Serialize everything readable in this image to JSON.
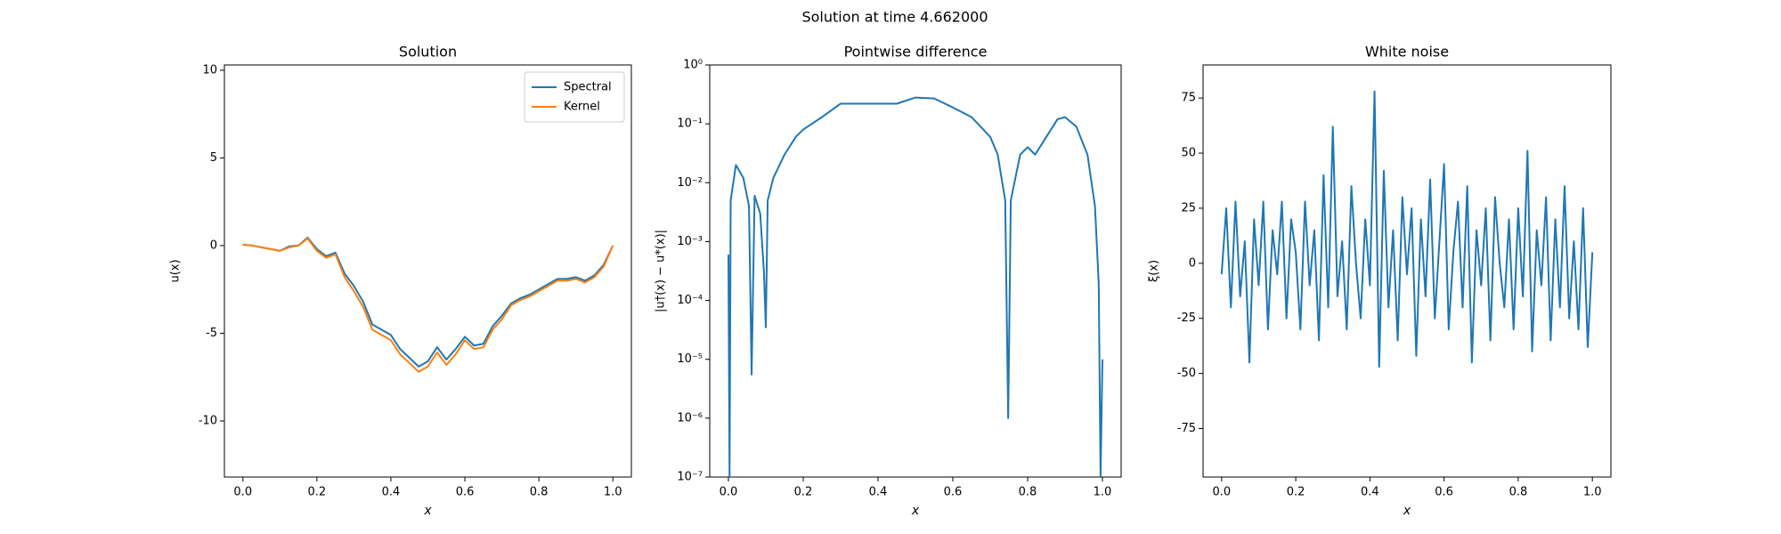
{
  "title": "Solution at time 4.662000",
  "chart_data": [
    {
      "type": "line",
      "title": "Solution",
      "xlabel": "x",
      "ylabel": "u(x)",
      "x": [
        0,
        0.025,
        0.05,
        0.075,
        0.1,
        0.125,
        0.15,
        0.175,
        0.2,
        0.225,
        0.25,
        0.275,
        0.3,
        0.325,
        0.35,
        0.375,
        0.4,
        0.425,
        0.45,
        0.475,
        0.5,
        0.525,
        0.55,
        0.575,
        0.6,
        0.625,
        0.65,
        0.675,
        0.7,
        0.725,
        0.75,
        0.775,
        0.8,
        0.825,
        0.85,
        0.875,
        0.9,
        0.925,
        0.95,
        0.975,
        1.0
      ],
      "series": [
        {
          "name": "Spectral",
          "color": "#1f77b4",
          "values": [
            0.05,
            0.0,
            -0.1,
            -0.2,
            -0.3,
            -0.05,
            0.0,
            0.45,
            -0.2,
            -0.6,
            -0.4,
            -1.6,
            -2.3,
            -3.2,
            -4.5,
            -4.8,
            -5.1,
            -5.9,
            -6.4,
            -6.9,
            -6.6,
            -5.8,
            -6.5,
            -5.9,
            -5.2,
            -5.7,
            -5.6,
            -4.6,
            -4.0,
            -3.3,
            -3.0,
            -2.8,
            -2.5,
            -2.2,
            -1.9,
            -1.9,
            -1.8,
            -2.0,
            -1.7,
            -1.1,
            0.0
          ]
        },
        {
          "name": "Kernel",
          "color": "#ff7f0e",
          "values": [
            0.05,
            0.0,
            -0.1,
            -0.2,
            -0.3,
            -0.1,
            0.0,
            0.4,
            -0.3,
            -0.7,
            -0.5,
            -1.8,
            -2.6,
            -3.5,
            -4.8,
            -5.1,
            -5.4,
            -6.2,
            -6.7,
            -7.2,
            -6.9,
            -6.1,
            -6.8,
            -6.2,
            -5.4,
            -5.9,
            -5.8,
            -4.8,
            -4.2,
            -3.4,
            -3.1,
            -2.9,
            -2.6,
            -2.3,
            -2.0,
            -2.0,
            -1.9,
            -2.1,
            -1.8,
            -1.2,
            0.0
          ]
        }
      ],
      "xlim": [
        -0.05,
        1.05
      ],
      "xticks": [
        {
          "value": 0,
          "label": "0.0"
        },
        0.2,
        0.4,
        0.6,
        0.8,
        {
          "value": 1,
          "label": "1.0"
        }
      ],
      "ylim": [
        -13.2,
        10.3
      ],
      "yticks": [
        -10,
        -5,
        0,
        5,
        10
      ],
      "legend": "upper right"
    },
    {
      "type": "line",
      "title": "Pointwise difference",
      "xlabel": "x",
      "ylabel": "|u†(x) − u*(x)|",
      "color": "#1f77b4",
      "yscale": "log",
      "x": [
        0,
        0.003,
        0.006,
        0.02,
        0.04,
        0.055,
        0.062,
        0.07,
        0.085,
        0.095,
        0.1,
        0.105,
        0.12,
        0.15,
        0.18,
        0.2,
        0.25,
        0.3,
        0.35,
        0.4,
        0.45,
        0.5,
        0.55,
        0.6,
        0.65,
        0.7,
        0.72,
        0.74,
        0.748,
        0.755,
        0.78,
        0.8,
        0.82,
        0.85,
        0.88,
        0.9,
        0.93,
        0.96,
        0.98,
        0.99,
        0.995,
        1.0
      ],
      "values": [
        0.0006,
        1e-07,
        0.005,
        0.02,
        0.012,
        0.004,
        5.5e-06,
        0.006,
        0.003,
        0.0003,
        3.5e-05,
        0.005,
        0.012,
        0.03,
        0.06,
        0.08,
        0.13,
        0.22,
        0.22,
        0.22,
        0.22,
        0.28,
        0.27,
        0.19,
        0.13,
        0.06,
        0.03,
        0.005,
        1e-06,
        0.005,
        0.03,
        0.04,
        0.03,
        0.06,
        0.12,
        0.13,
        0.09,
        0.03,
        0.004,
        0.0002,
        1e-07,
        1e-05
      ],
      "xlim": [
        -0.05,
        1.05
      ],
      "xticks": [
        {
          "value": 0,
          "label": "0.0"
        },
        0.2,
        0.4,
        0.6,
        0.8,
        {
          "value": 1,
          "label": "1.0"
        }
      ],
      "ylim": [
        1e-07,
        1
      ],
      "yticks": [
        {
          "value": 1e-07,
          "label": "10⁻⁷"
        },
        {
          "value": 1e-06,
          "label": "10⁻⁶"
        },
        {
          "value": 1e-05,
          "label": "10⁻⁵"
        },
        {
          "value": 0.0001,
          "label": "10⁻⁴"
        },
        {
          "value": 0.001,
          "label": "10⁻³"
        },
        {
          "value": 0.01,
          "label": "10⁻²"
        },
        {
          "value": 0.1,
          "label": "10⁻¹"
        },
        {
          "value": 1,
          "label": "10⁰"
        }
      ]
    },
    {
      "type": "line",
      "title": "White noise",
      "xlabel": "x",
      "ylabel": "ξ(x)",
      "color": "#1f77b4",
      "x": [
        0,
        0.0125,
        0.025,
        0.0375,
        0.05,
        0.0625,
        0.075,
        0.0875,
        0.1,
        0.1125,
        0.125,
        0.1375,
        0.15,
        0.1625,
        0.175,
        0.1875,
        0.2,
        0.2125,
        0.225,
        0.2375,
        0.25,
        0.2625,
        0.275,
        0.2875,
        0.3,
        0.3125,
        0.325,
        0.3375,
        0.35,
        0.3625,
        0.375,
        0.3875,
        0.4,
        0.4125,
        0.425,
        0.4375,
        0.45,
        0.4625,
        0.475,
        0.4875,
        0.5,
        0.5125,
        0.525,
        0.5375,
        0.55,
        0.5625,
        0.575,
        0.5875,
        0.6,
        0.6125,
        0.625,
        0.6375,
        0.65,
        0.6625,
        0.675,
        0.6875,
        0.7,
        0.7125,
        0.725,
        0.7375,
        0.75,
        0.7625,
        0.775,
        0.7875,
        0.8,
        0.8125,
        0.825,
        0.8375,
        0.85,
        0.8625,
        0.875,
        0.8875,
        0.9,
        0.9125,
        0.925,
        0.9375,
        0.95,
        0.9625,
        0.975,
        0.9875,
        1.0
      ],
      "values": [
        -5,
        25,
        -20,
        28,
        -15,
        10,
        -45,
        20,
        -10,
        28,
        -30,
        15,
        -5,
        28,
        -25,
        20,
        5,
        -30,
        28,
        -10,
        15,
        -35,
        40,
        -20,
        62,
        -15,
        10,
        -30,
        35,
        0,
        -25,
        20,
        -10,
        78,
        -47,
        42,
        -20,
        15,
        -35,
        30,
        -5,
        25,
        -42,
        20,
        -15,
        38,
        -25,
        10,
        45,
        -30,
        5,
        28,
        -20,
        35,
        -45,
        15,
        -10,
        25,
        -35,
        30,
        0,
        -20,
        20,
        -30,
        25,
        -15,
        51,
        -40,
        15,
        -10,
        30,
        -35,
        20,
        -20,
        35,
        -25,
        10,
        -30,
        25,
        -38,
        5
      ],
      "xlim": [
        -0.05,
        1.05
      ],
      "xticks": [
        {
          "value": 0,
          "label": "0.0"
        },
        0.2,
        0.4,
        0.6,
        0.8,
        {
          "value": 1,
          "label": "1.0"
        }
      ],
      "ylim": [
        -97,
        90
      ],
      "yticks": [
        -75,
        -50,
        -25,
        0,
        25,
        50,
        75
      ]
    }
  ]
}
